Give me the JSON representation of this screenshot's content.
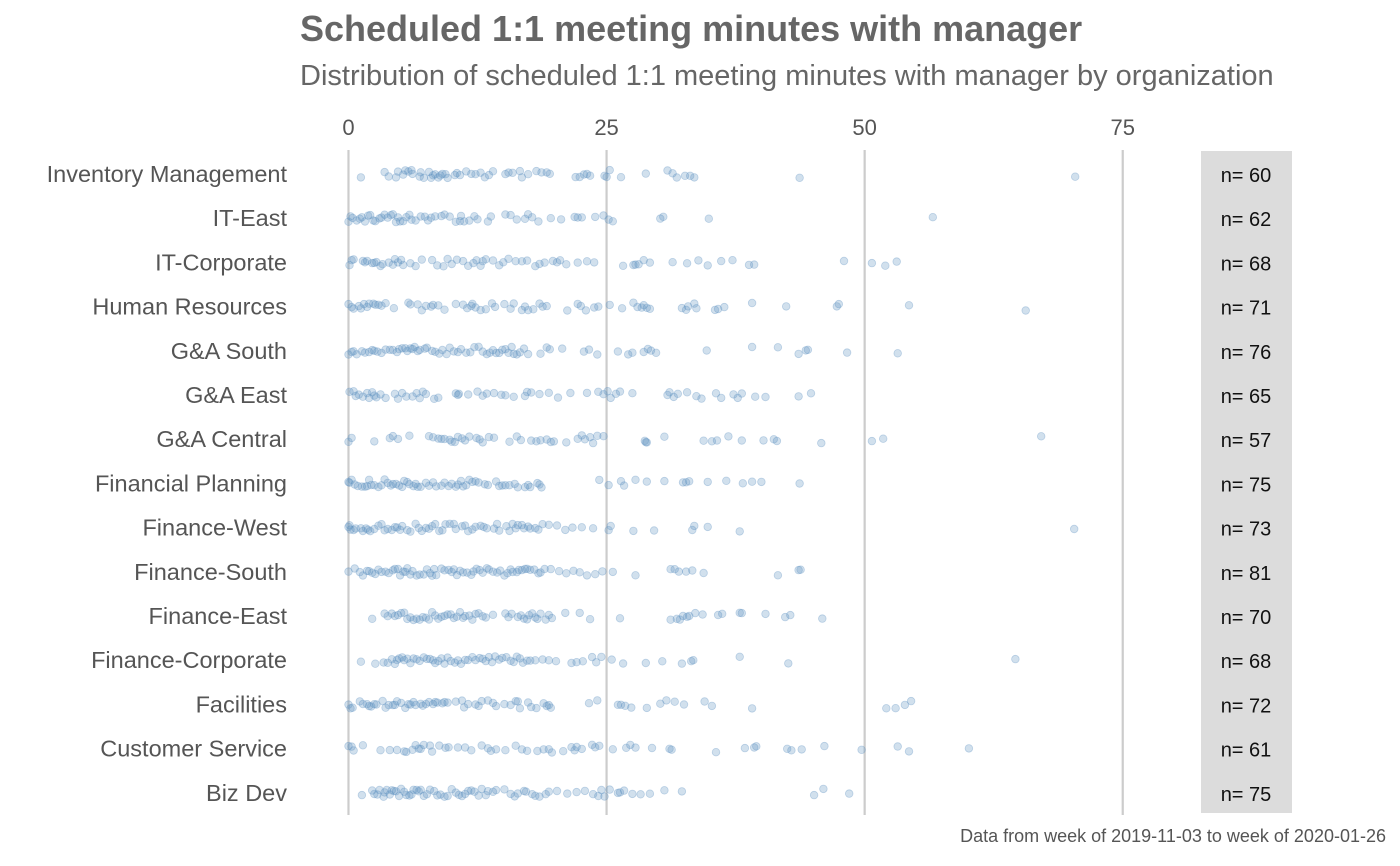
{
  "chart_data": {
    "type": "scatter",
    "title": "Scheduled 1:1 meeting minutes with manager",
    "subtitle": "Distribution of scheduled 1:1 meeting minutes with manager by organization",
    "caption": "Data from week of 2019-11-03 to week of 2020-01-26",
    "xlabel": "",
    "ylabel": "",
    "x_ticks": [
      0,
      25,
      50,
      75
    ],
    "xlim": [
      -1.5,
      82
    ],
    "grid": "vertical",
    "colors": {
      "point": "#5b8fc0",
      "grid": "#cccccc",
      "count_panel": "#dcdcdc",
      "label": "#555555"
    },
    "counts_label_prefix": "n= ",
    "categories": [
      "Inventory Management",
      "IT-East",
      "IT-Corporate",
      "Human Resources",
      "G&A South",
      "G&A East",
      "G&A Central",
      "Financial Planning",
      "Finance-West",
      "Finance-South",
      "Finance-East",
      "Finance-Corporate",
      "Facilities",
      "Customer Service",
      "Biz Dev"
    ],
    "counts": [
      60,
      62,
      68,
      71,
      76,
      65,
      57,
      75,
      73,
      81,
      70,
      68,
      72,
      61,
      75
    ],
    "series": [
      {
        "category": "Inventory Management",
        "values": [
          1.2,
          3.5,
          4.6,
          5.3,
          5.8,
          6.1,
          6.9,
          7.3,
          8.0,
          8.4,
          8.7,
          9.1,
          9.6,
          10.3,
          10.8,
          11.4,
          12.3,
          12.8,
          13.2,
          14.0,
          15.2,
          15.9,
          16.6,
          17.4,
          18.2,
          19.2,
          19.5,
          22.0,
          22.4,
          23.1,
          23.4,
          24.8,
          25.3,
          26.4,
          28.8,
          30.9,
          31.8,
          32.6,
          33.5,
          43.7,
          70.4,
          3.9,
          4.8,
          5.5,
          6.2,
          7.0,
          7.8,
          8.2,
          8.9,
          9.4,
          10.5,
          11.9,
          13.6,
          15.5,
          16.8,
          18.7,
          22.8,
          25.0,
          31.4,
          33.1
        ]
      },
      {
        "category": "IT-East",
        "values": [
          0.0,
          0.4,
          1.1,
          1.6,
          2.1,
          2.6,
          3.0,
          3.5,
          4.1,
          4.6,
          5.0,
          5.6,
          6.1,
          7.0,
          7.7,
          8.4,
          9.3,
          10.4,
          10.8,
          11.7,
          12.5,
          13.5,
          15.2,
          16.3,
          17.1,
          17.4,
          18.4,
          19.6,
          21.9,
          22.6,
          23.9,
          24.7,
          25.2,
          25.6,
          30.2,
          34.9,
          56.6,
          0.2,
          0.8,
          1.3,
          1.9,
          2.4,
          3.2,
          3.8,
          4.3,
          4.8,
          5.3,
          5.9,
          6.5,
          7.4,
          8.0,
          9.0,
          9.8,
          10.9,
          11.2,
          12.2,
          13.8,
          15.7,
          17.8,
          20.6,
          22.2,
          30.5
        ]
      },
      {
        "category": "IT-Corporate",
        "values": [
          0.1,
          0.3,
          1.4,
          1.8,
          2.3,
          2.7,
          3.3,
          3.9,
          4.3,
          4.8,
          5.3,
          6.0,
          7.1,
          8.1,
          9.2,
          10.0,
          10.5,
          11.6,
          12.4,
          12.8,
          13.3,
          14.0,
          14.6,
          15.5,
          16.2,
          17.3,
          18.1,
          19.0,
          19.8,
          20.5,
          21.1,
          22.2,
          23.1,
          23.8,
          26.6,
          27.6,
          28.1,
          28.6,
          29.2,
          31.4,
          32.8,
          33.9,
          34.8,
          36.1,
          37.2,
          38.8,
          39.3,
          48.0,
          50.7,
          52.0,
          53.1,
          0.5,
          1.6,
          2.5,
          3.1,
          4.5,
          5.1,
          6.5,
          8.6,
          9.6,
          11.1,
          12.1,
          13.0,
          15.0,
          16.8,
          18.5,
          20.2,
          27.8
        ]
      },
      {
        "category": "Human Resources",
        "values": [
          0.0,
          0.5,
          1.2,
          1.5,
          1.8,
          2.4,
          2.9,
          3.6,
          4.4,
          5.8,
          6.7,
          7.1,
          8.0,
          8.7,
          9.3,
          10.4,
          11.5,
          11.9,
          12.3,
          12.8,
          13.3,
          14.2,
          15.1,
          16.0,
          16.8,
          17.4,
          17.9,
          18.5,
          19.2,
          21.2,
          22.2,
          22.5,
          23.0,
          23.8,
          25.3,
          26.5,
          27.6,
          28.0,
          28.4,
          28.9,
          29.2,
          32.3,
          32.7,
          33.5,
          33.7,
          35.5,
          35.8,
          36.4,
          39.1,
          42.4,
          47.3,
          47.5,
          54.3,
          65.6,
          0.3,
          1.0,
          2.0,
          2.6,
          3.2,
          6.0,
          7.5,
          8.2,
          11.1,
          12.0,
          13.9,
          15.7,
          17.1,
          18.8,
          24.2,
          28.6,
          32.9
        ]
      },
      {
        "category": "G&A South",
        "values": [
          0.0,
          0.5,
          1.3,
          2.0,
          2.3,
          2.8,
          3.6,
          4.3,
          4.7,
          5.2,
          5.5,
          6.0,
          6.4,
          6.9,
          7.4,
          8.1,
          8.8,
          9.5,
          10.2,
          10.9,
          11.8,
          12.6,
          13.4,
          14.0,
          14.6,
          15.2,
          15.8,
          16.3,
          17.0,
          18.6,
          19.2,
          20.7,
          23.3,
          24.1,
          26.1,
          27.1,
          28.6,
          29.3,
          29.8,
          34.7,
          39.1,
          41.6,
          43.6,
          44.5,
          48.3,
          53.2,
          0.3,
          0.8,
          1.6,
          2.5,
          3.2,
          4.0,
          4.9,
          5.7,
          6.2,
          6.7,
          7.6,
          8.4,
          9.1,
          9.8,
          10.6,
          11.4,
          12.2,
          13.0,
          13.7,
          14.3,
          14.9,
          15.5,
          16.0,
          16.6,
          17.4,
          19.5,
          22.8,
          27.5,
          29.0,
          44.3
        ]
      },
      {
        "category": "G&A East",
        "values": [
          0.1,
          0.5,
          1.0,
          1.8,
          2.3,
          2.7,
          3.6,
          4.5,
          5.2,
          6.2,
          6.9,
          7.5,
          8.3,
          10.4,
          10.7,
          11.6,
          12.5,
          13.4,
          14.1,
          14.8,
          16.0,
          17.1,
          17.7,
          18.5,
          19.4,
          20.3,
          21.5,
          23.1,
          24.2,
          24.7,
          25.4,
          25.9,
          26.3,
          27.5,
          31.1,
          31.5,
          31.9,
          32.8,
          33.7,
          34.2,
          35.6,
          36.1,
          37.3,
          38.1,
          39.4,
          40.4,
          43.6,
          44.8,
          0.7,
          1.4,
          2.0,
          2.5,
          3.1,
          4.8,
          5.6,
          6.6,
          7.2,
          8.7,
          10.6,
          13.0,
          15.2,
          17.3,
          25.1,
          30.9,
          37.7
        ]
      },
      {
        "category": "G&A Central",
        "values": [
          0.0,
          0.3,
          2.5,
          4.3,
          4.8,
          5.9,
          7.8,
          8.7,
          9.3,
          9.8,
          10.3,
          11.0,
          11.7,
          12.4,
          13.0,
          14.1,
          15.6,
          16.7,
          17.7,
          18.2,
          19.2,
          19.9,
          21.1,
          22.2,
          22.9,
          23.4,
          24.1,
          24.7,
          28.7,
          28.9,
          30.6,
          34.4,
          35.2,
          35.7,
          36.8,
          38.1,
          40.2,
          41.2,
          41.5,
          45.8,
          50.7,
          51.8,
          67.1,
          4.0,
          8.2,
          9.0,
          10.0,
          10.6,
          11.3,
          12.7,
          13.6,
          16.3,
          18.6,
          19.6,
          22.6,
          23.7,
          28.8
        ]
      },
      {
        "category": "Financial Planning",
        "values": [
          0.0,
          0.3,
          0.6,
          1.3,
          1.8,
          2.2,
          2.5,
          3.2,
          3.8,
          4.3,
          4.9,
          5.4,
          5.9,
          6.5,
          7.0,
          7.8,
          8.5,
          9.3,
          10.0,
          10.4,
          10.9,
          11.4,
          12.0,
          12.6,
          13.2,
          14.3,
          14.9,
          15.6,
          16.4,
          17.1,
          17.6,
          18.3,
          18.7,
          24.3,
          25.2,
          26.4,
          27.8,
          28.9,
          30.6,
          32.4,
          32.7,
          34.8,
          36.6,
          38.2,
          39.1,
          40.0,
          43.7,
          0.1,
          0.9,
          1.6,
          2.0,
          2.9,
          3.5,
          4.1,
          4.6,
          5.2,
          5.7,
          6.3,
          6.7,
          7.5,
          8.2,
          9.0,
          9.7,
          10.6,
          11.1,
          11.7,
          12.3,
          13.5,
          14.6,
          15.2,
          16.1,
          17.4,
          18.5,
          26.7,
          33.0
        ]
      },
      {
        "category": "Finance-West",
        "values": [
          0.0,
          0.2,
          0.5,
          1.2,
          1.7,
          2.1,
          2.5,
          3.2,
          3.5,
          4.2,
          4.7,
          5.2,
          5.7,
          6.5,
          7.1,
          7.5,
          8.1,
          8.8,
          9.4,
          9.8,
          10.4,
          11.0,
          11.6,
          12.3,
          12.8,
          13.4,
          14.1,
          14.6,
          15.3,
          15.9,
          16.4,
          17.0,
          17.6,
          18.1,
          18.8,
          19.4,
          20.2,
          21.0,
          21.7,
          22.6,
          23.7,
          25.2,
          25.4,
          27.6,
          29.6,
          33.3,
          33.5,
          34.8,
          37.9,
          70.3,
          0.1,
          0.7,
          1.4,
          1.9,
          2.9,
          3.8,
          4.5,
          5.0,
          6.0,
          6.8,
          7.8,
          8.4,
          9.1,
          10.2,
          11.3,
          12.0,
          13.1,
          14.4,
          15.6,
          16.2,
          16.8,
          17.4,
          18.4
        ]
      },
      {
        "category": "Finance-South",
        "values": [
          0.0,
          0.6,
          1.4,
          1.8,
          2.3,
          2.9,
          3.6,
          4.3,
          4.8,
          5.3,
          5.7,
          6.2,
          6.9,
          7.6,
          8.1,
          8.5,
          9.3,
          10.0,
          10.5,
          11.1,
          11.9,
          12.4,
          13.0,
          13.6,
          14.0,
          14.7,
          15.4,
          15.9,
          16.3,
          16.8,
          17.3,
          18.0,
          18.4,
          19.0,
          19.6,
          20.4,
          21.1,
          21.8,
          22.4,
          23.1,
          23.9,
          24.6,
          25.6,
          27.8,
          31.2,
          31.6,
          32.0,
          32.7,
          33.3,
          34.4,
          41.6,
          43.6,
          43.8,
          1.1,
          2.0,
          2.6,
          3.2,
          3.9,
          4.5,
          5.0,
          5.5,
          6.0,
          6.6,
          7.3,
          7.9,
          8.3,
          9.0,
          9.7,
          10.2,
          10.8,
          11.5,
          12.1,
          12.7,
          13.4,
          14.4,
          15.1,
          15.7,
          16.5,
          17.1,
          17.6,
          18.6
        ]
      },
      {
        "category": "Finance-East",
        "values": [
          2.3,
          3.5,
          4.2,
          4.8,
          5.4,
          6.0,
          6.6,
          7.2,
          7.8,
          8.4,
          9.0,
          9.6,
          10.2,
          10.8,
          11.3,
          12.0,
          12.6,
          13.3,
          14.0,
          15.2,
          15.8,
          16.4,
          17.0,
          17.5,
          18.1,
          18.6,
          19.1,
          19.7,
          21.0,
          22.4,
          23.4,
          26.3,
          31.2,
          31.8,
          32.4,
          32.8,
          33.6,
          34.3,
          35.8,
          36.2,
          37.9,
          38.1,
          40.4,
          42.3,
          42.8,
          45.9,
          3.8,
          4.5,
          5.1,
          5.7,
          6.3,
          6.9,
          7.5,
          8.1,
          8.7,
          9.3,
          9.9,
          10.5,
          11.1,
          11.7,
          12.3,
          13.0,
          15.5,
          16.7,
          17.3,
          17.8,
          18.3,
          19.4,
          32.1,
          33.0
        ]
      },
      {
        "category": "Finance-Corporate",
        "values": [
          1.2,
          2.6,
          3.8,
          4.5,
          4.9,
          5.4,
          6.0,
          6.6,
          7.3,
          7.9,
          8.4,
          9.0,
          9.6,
          10.3,
          10.9,
          11.6,
          12.3,
          13.0,
          13.6,
          14.2,
          14.9,
          15.7,
          16.3,
          16.9,
          17.6,
          18.8,
          20.1,
          21.6,
          22.7,
          23.6,
          24.5,
          25.5,
          26.6,
          28.8,
          30.4,
          32.3,
          33.2,
          37.9,
          42.6,
          64.6,
          3.4,
          4.2,
          4.7,
          5.2,
          5.7,
          6.3,
          6.9,
          7.6,
          8.2,
          8.7,
          9.3,
          9.9,
          10.6,
          11.3,
          12.0,
          12.7,
          13.3,
          13.9,
          14.6,
          15.3,
          16.0,
          16.6,
          17.3,
          18.1,
          19.4,
          22.1,
          24.0,
          33.4
        ]
      },
      {
        "category": "Facilities",
        "values": [
          0.0,
          0.4,
          1.4,
          1.8,
          2.2,
          2.5,
          3.3,
          3.9,
          4.3,
          4.7,
          5.5,
          6.0,
          6.5,
          7.2,
          7.8,
          8.2,
          8.6,
          9.1,
          9.6,
          10.4,
          11.2,
          11.6,
          12.3,
          12.9,
          13.5,
          14.3,
          15.1,
          15.7,
          16.2,
          16.6,
          17.4,
          18.2,
          18.9,
          19.2,
          19.6,
          23.3,
          24.1,
          26.4,
          26.8,
          27.4,
          28.9,
          30.2,
          30.8,
          31.6,
          32.5,
          34.5,
          35.2,
          39.1,
          52.1,
          53.0,
          53.9,
          54.5,
          0.2,
          1.1,
          2.0,
          2.7,
          3.6,
          4.5,
          5.1,
          5.8,
          6.3,
          7.0,
          7.5,
          8.4,
          9.3,
          11.0,
          12.6,
          14.0,
          16.4,
          17.7,
          19.4,
          26.1
        ]
      },
      {
        "category": "Customer Service",
        "values": [
          0.0,
          0.3,
          1.4,
          3.1,
          4.7,
          5.4,
          6.2,
          6.8,
          7.3,
          7.9,
          8.8,
          9.7,
          10.6,
          11.9,
          12.9,
          13.5,
          14.3,
          15.2,
          16.2,
          17.3,
          18.3,
          18.9,
          19.7,
          20.8,
          21.6,
          22.1,
          22.6,
          23.6,
          24.3,
          25.6,
          26.9,
          27.8,
          29.4,
          31.1,
          31.3,
          35.6,
          38.4,
          39.3,
          39.5,
          42.5,
          42.9,
          43.9,
          46.1,
          49.7,
          53.2,
          54.3,
          60.1,
          0.5,
          4.0,
          5.6,
          6.5,
          7.0,
          8.1,
          9.4,
          11.3,
          13.8,
          16.8,
          19.4,
          21.9,
          23.9,
          27.3
        ]
      },
      {
        "category": "Biz Dev",
        "values": [
          1.3,
          2.3,
          2.8,
          3.4,
          3.7,
          4.2,
          4.6,
          5.1,
          5.6,
          6.1,
          6.6,
          7.0,
          7.6,
          8.3,
          8.9,
          9.6,
          10.4,
          11.0,
          11.6,
          12.2,
          12.9,
          13.5,
          14.3,
          15.1,
          15.7,
          16.4,
          17.2,
          17.8,
          18.5,
          19.4,
          20.2,
          21.2,
          22.1,
          22.9,
          23.7,
          24.2,
          24.8,
          25.3,
          26.1,
          26.7,
          27.5,
          28.3,
          29.2,
          30.6,
          32.3,
          45.1,
          46.0,
          48.5,
          2.5,
          3.0,
          3.5,
          4.0,
          4.4,
          4.9,
          5.4,
          5.9,
          6.3,
          6.8,
          7.3,
          7.9,
          8.6,
          9.3,
          10.0,
          10.7,
          11.3,
          11.9,
          12.6,
          13.3,
          14.0,
          16.1,
          17.0,
          18.1,
          19.1,
          24.5,
          26.3
        ]
      }
    ]
  }
}
